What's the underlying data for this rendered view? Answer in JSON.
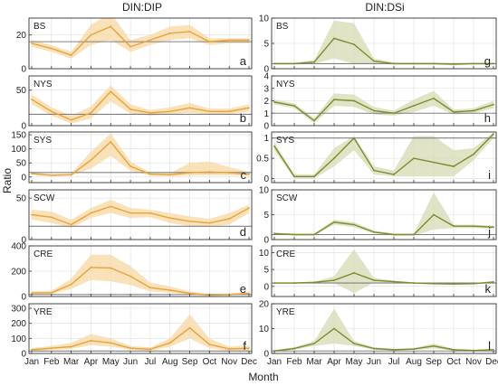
{
  "figure": {
    "ylabel": "Ratio",
    "xlabel": "Month",
    "column_titles": [
      "DIN:DIP",
      "DIN:DSi"
    ],
    "months": [
      "Jan",
      "Feb",
      "Mar",
      "Apr",
      "May",
      "Jun",
      "Jul",
      "Aug",
      "Sep",
      "Oct",
      "Nov",
      "Dec"
    ]
  },
  "colors": {
    "left_line": "#E8A33A",
    "left_band": "#F7D9A8",
    "right_line": "#7E8A2E",
    "right_band": "#D9DCB8",
    "reference_line": "#808080",
    "grid": "#DDDDDD",
    "axis": "#333333"
  },
  "chart_data": [
    {
      "type": "line",
      "column": "DIN:DIP",
      "station": "BS",
      "letter": "a",
      "ylim": [
        0,
        30
      ],
      "yticks": [
        0,
        20
      ],
      "reference": 16,
      "values": [
        15,
        12,
        8,
        20,
        25,
        13,
        17,
        21,
        22,
        16,
        17,
        17
      ],
      "lower": [
        13,
        10,
        6,
        14,
        17,
        10,
        14,
        17,
        18,
        14,
        15,
        15
      ],
      "upper": [
        17,
        14,
        10,
        26,
        33,
        17,
        20,
        25,
        26,
        18,
        18,
        18
      ]
    },
    {
      "type": "line",
      "column": "DIN:DIP",
      "station": "NYS",
      "letter": "b",
      "ylim": [
        0,
        70
      ],
      "yticks": [
        0,
        50
      ],
      "reference": 16,
      "values": [
        37,
        20,
        8,
        18,
        48,
        23,
        18,
        20,
        25,
        20,
        20,
        25
      ],
      "lower": [
        30,
        14,
        3,
        10,
        34,
        17,
        14,
        16,
        18,
        16,
        16,
        20
      ],
      "upper": [
        44,
        26,
        14,
        27,
        57,
        30,
        22,
        26,
        32,
        24,
        24,
        30
      ]
    },
    {
      "type": "line",
      "column": "DIN:DIP",
      "station": "SYS",
      "letter": "c",
      "ylim": [
        -20,
        160
      ],
      "yticks": [
        0,
        50,
        100,
        150
      ],
      "reference": 16,
      "values": [
        12,
        6,
        8,
        60,
        125,
        38,
        10,
        8,
        15,
        18,
        15,
        10
      ],
      "lower": [
        8,
        2,
        4,
        30,
        75,
        22,
        5,
        3,
        5,
        6,
        6,
        4
      ],
      "upper": [
        16,
        10,
        12,
        90,
        155,
        55,
        15,
        14,
        50,
        55,
        35,
        18
      ]
    },
    {
      "type": "line",
      "column": "DIN:DIP",
      "station": "SCW",
      "letter": "d",
      "ylim": [
        0,
        60
      ],
      "yticks": [
        0,
        50
      ],
      "reference": 16,
      "values": [
        30,
        27,
        18,
        32,
        40,
        32,
        32,
        26,
        22,
        20,
        25,
        38
      ],
      "lower": [
        24,
        20,
        14,
        26,
        32,
        26,
        27,
        20,
        16,
        16,
        18,
        32
      ],
      "upper": [
        36,
        34,
        24,
        38,
        48,
        38,
        36,
        32,
        28,
        25,
        32,
        42
      ]
    },
    {
      "type": "line",
      "column": "DIN:DIP",
      "station": "CRE",
      "letter": "e",
      "ylim": [
        0,
        400
      ],
      "yticks": [
        0,
        200,
        400
      ],
      "reference": 16,
      "values": [
        28,
        30,
        95,
        230,
        225,
        160,
        70,
        50,
        25,
        10,
        15,
        25
      ],
      "lower": [
        18,
        20,
        60,
        130,
        120,
        90,
        40,
        30,
        15,
        5,
        8,
        15
      ],
      "upper": [
        40,
        45,
        140,
        330,
        330,
        240,
        110,
        80,
        40,
        20,
        25,
        35
      ]
    },
    {
      "type": "line",
      "column": "DIN:DIP",
      "station": "YRE",
      "letter": "f",
      "ylim": [
        0,
        330
      ],
      "yticks": [
        0,
        100,
        200,
        300
      ],
      "reference": 16,
      "values": [
        25,
        35,
        45,
        85,
        70,
        35,
        28,
        70,
        170,
        60,
        30,
        35
      ],
      "lower": [
        15,
        25,
        30,
        55,
        45,
        25,
        18,
        45,
        100,
        35,
        18,
        20
      ],
      "upper": [
        35,
        50,
        70,
        130,
        100,
        50,
        40,
        100,
        260,
        100,
        45,
        55
      ]
    },
    {
      "type": "line",
      "column": "DIN:DSi",
      "station": "BS",
      "letter": "g",
      "ylim": [
        0,
        10
      ],
      "yticks": [
        0,
        5,
        10
      ],
      "reference": 1,
      "values": [
        1.0,
        1.0,
        1.3,
        6.0,
        4.8,
        1.5,
        1.0,
        1.0,
        1.0,
        0.9,
        1.0,
        1.0
      ],
      "lower": [
        0.8,
        0.8,
        1.0,
        2.0,
        1.0,
        1.0,
        0.8,
        0.8,
        0.8,
        0.7,
        0.8,
        0.8
      ],
      "upper": [
        1.2,
        1.2,
        1.7,
        9.5,
        9.0,
        2.0,
        1.2,
        1.2,
        1.2,
        1.1,
        1.2,
        1.2
      ]
    },
    {
      "type": "line",
      "column": "DIN:DSi",
      "station": "NYS",
      "letter": "h",
      "ylim": [
        0,
        4
      ],
      "yticks": [
        0,
        1,
        2,
        3,
        4
      ],
      "reference": 1,
      "values": [
        1.9,
        1.6,
        0.4,
        2.1,
        2.0,
        1.2,
        1.0,
        1.6,
        2.2,
        1.1,
        1.2,
        1.7
      ],
      "lower": [
        1.7,
        1.4,
        0.2,
        1.6,
        1.5,
        0.9,
        0.8,
        1.1,
        1.6,
        0.9,
        1.0,
        1.4
      ],
      "upper": [
        2.1,
        1.8,
        0.6,
        2.6,
        2.5,
        1.5,
        1.2,
        2.1,
        2.8,
        1.3,
        1.4,
        2.0
      ]
    },
    {
      "type": "line",
      "column": "DIN:DSi",
      "station": "SYS",
      "letter": "i",
      "ylim": [
        -0.1,
        1.15
      ],
      "yticks": [
        0,
        0.5,
        1
      ],
      "reference": 1,
      "values": [
        0.8,
        0.05,
        0.05,
        0.5,
        1.0,
        0.2,
        0.1,
        0.5,
        0.4,
        0.3,
        0.6,
        1.1
      ],
      "lower": [
        0.7,
        0.0,
        0.0,
        0.3,
        0.7,
        0.1,
        0.05,
        0.05,
        0.05,
        0.05,
        0.45,
        1.0
      ],
      "upper": [
        0.9,
        0.1,
        0.1,
        0.75,
        1.05,
        0.3,
        0.2,
        1.05,
        1.05,
        0.7,
        0.75,
        1.15
      ]
    },
    {
      "type": "line",
      "column": "DIN:DSi",
      "station": "SCW",
      "letter": "j",
      "ylim": [
        0,
        10
      ],
      "yticks": [
        0,
        5,
        10
      ],
      "reference": 1,
      "values": [
        1.2,
        1.0,
        1.0,
        3.5,
        3.0,
        1.5,
        1.0,
        1.0,
        5.0,
        2.7,
        2.7,
        2.5
      ],
      "lower": [
        1.0,
        0.8,
        0.8,
        3.0,
        2.5,
        1.2,
        0.8,
        0.8,
        2.0,
        2.3,
        2.3,
        2.2
      ],
      "upper": [
        1.4,
        1.2,
        1.2,
        4.0,
        3.5,
        1.8,
        1.2,
        1.2,
        9.5,
        3.0,
        3.0,
        2.8
      ]
    },
    {
      "type": "line",
      "column": "DIN:DSi",
      "station": "CRE",
      "letter": "k",
      "ylim": [
        -3,
        12
      ],
      "yticks": [
        0,
        5,
        10
      ],
      "reference": 1,
      "values": [
        1.0,
        1.0,
        1.2,
        1.8,
        4.0,
        1.8,
        1.4,
        1.0,
        0.8,
        0.7,
        0.8,
        1.3
      ],
      "lower": [
        0.8,
        0.8,
        1.0,
        1.0,
        -2.0,
        1.2,
        1.1,
        0.8,
        0.6,
        0.5,
        0.6,
        1.0
      ],
      "upper": [
        1.2,
        1.2,
        1.4,
        3.0,
        11.0,
        2.5,
        1.7,
        1.2,
        1.0,
        0.9,
        1.0,
        1.6
      ]
    },
    {
      "type": "line",
      "column": "DIN:DSi",
      "station": "YRE",
      "letter": "l",
      "ylim": [
        0,
        20
      ],
      "yticks": [
        0,
        10,
        20
      ],
      "reference": 1,
      "values": [
        1.0,
        2.0,
        4.0,
        10.0,
        4.0,
        2.0,
        1.5,
        1.8,
        3.0,
        1.5,
        1.2,
        1.5
      ],
      "lower": [
        0.8,
        1.5,
        3.0,
        4.0,
        3.0,
        1.5,
        1.2,
        1.4,
        2.0,
        1.2,
        1.0,
        1.2
      ],
      "upper": [
        1.2,
        2.5,
        5.0,
        18.0,
        5.0,
        2.5,
        1.8,
        2.2,
        4.0,
        1.8,
        1.4,
        1.8
      ]
    }
  ]
}
